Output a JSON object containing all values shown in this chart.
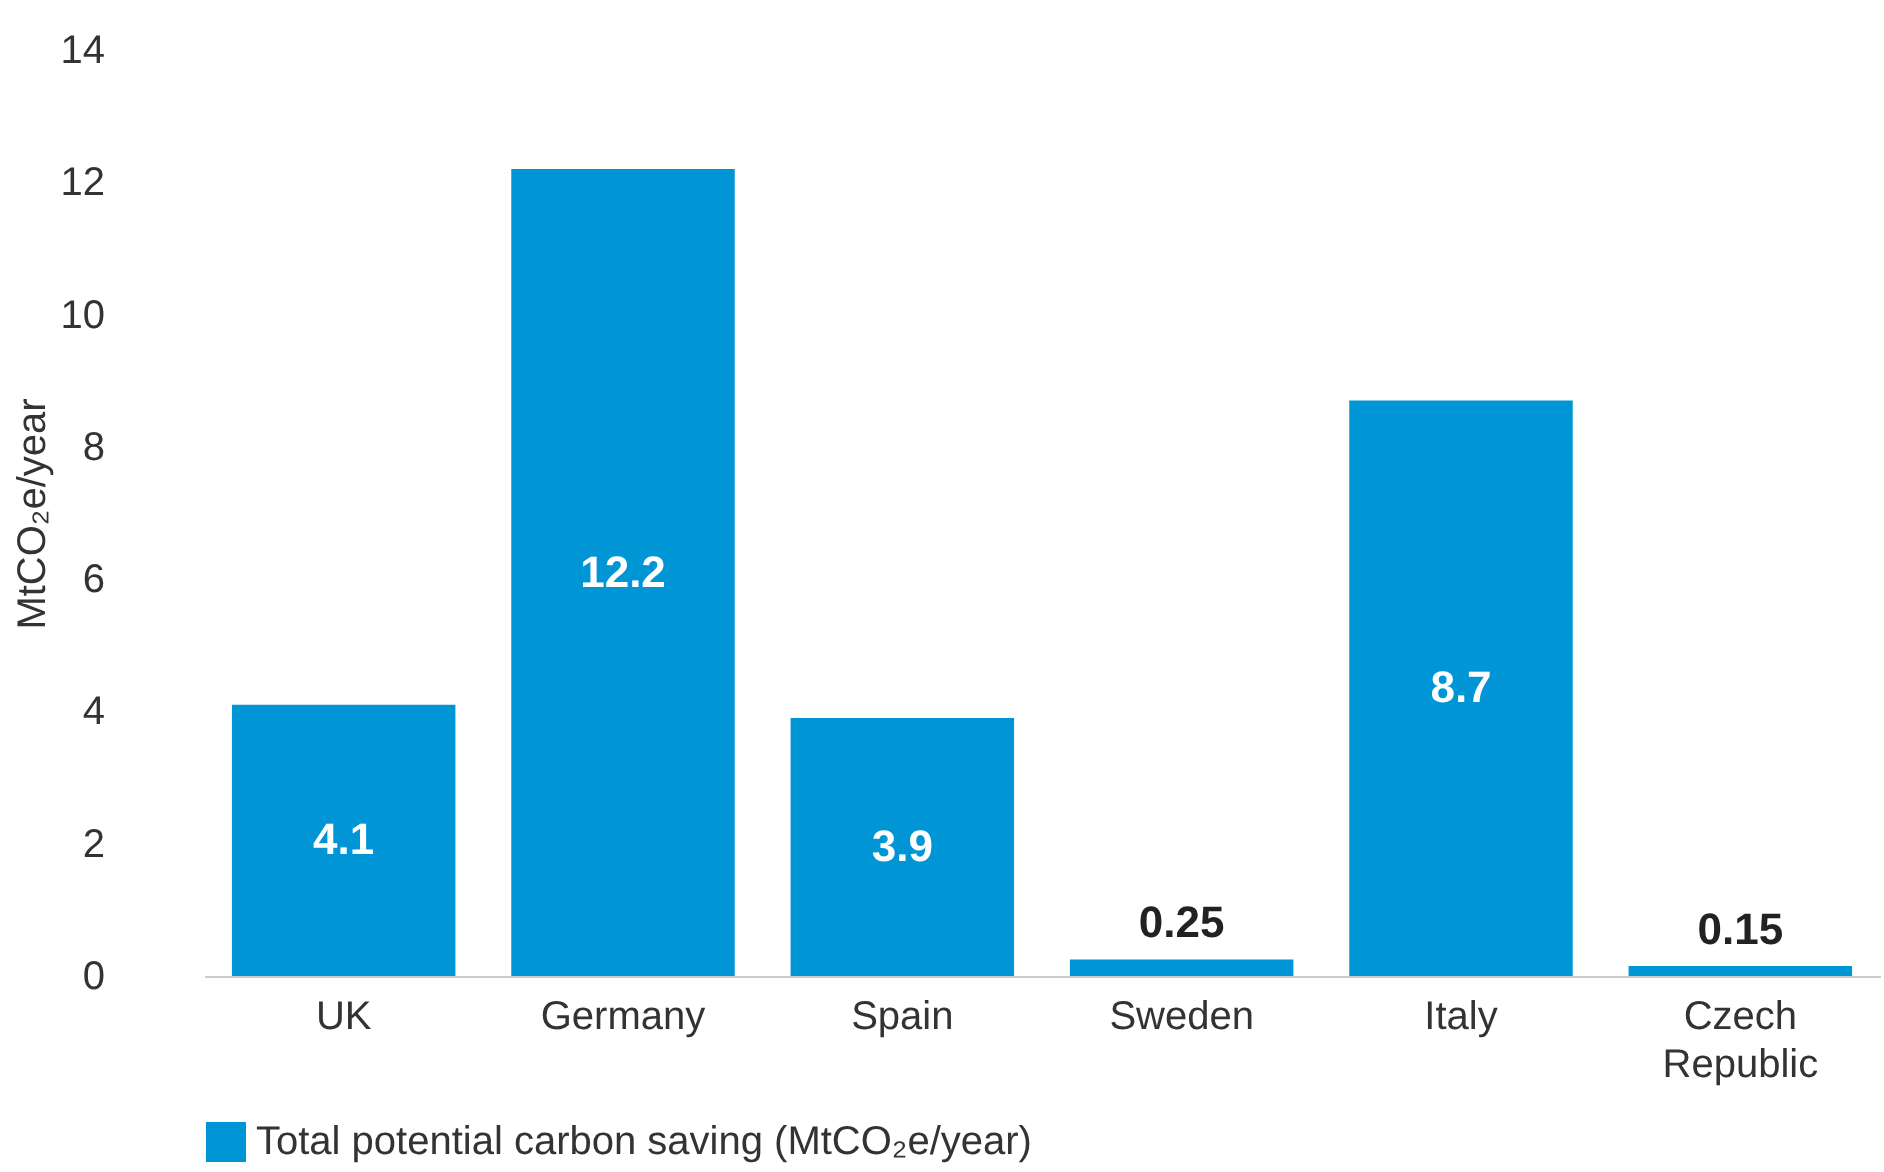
{
  "chart_data": {
    "type": "bar",
    "ylabel": "MtCO₂e/year",
    "categories": [
      "UK",
      "Germany",
      "Spain",
      "Sweden",
      "Italy",
      "Czech Republic"
    ],
    "series": [
      {
        "name": "Total potential carbon saving (MtCO₂e/year)",
        "color": "#0096d6",
        "values": [
          4.1,
          12.2,
          3.9,
          0.25,
          8.7,
          0.15
        ]
      }
    ],
    "ylim": [
      0,
      14
    ],
    "yticks": [
      0,
      2,
      4,
      6,
      8,
      10,
      12,
      14
    ],
    "grid": false,
    "legend": "bottom",
    "data_labels": true
  }
}
